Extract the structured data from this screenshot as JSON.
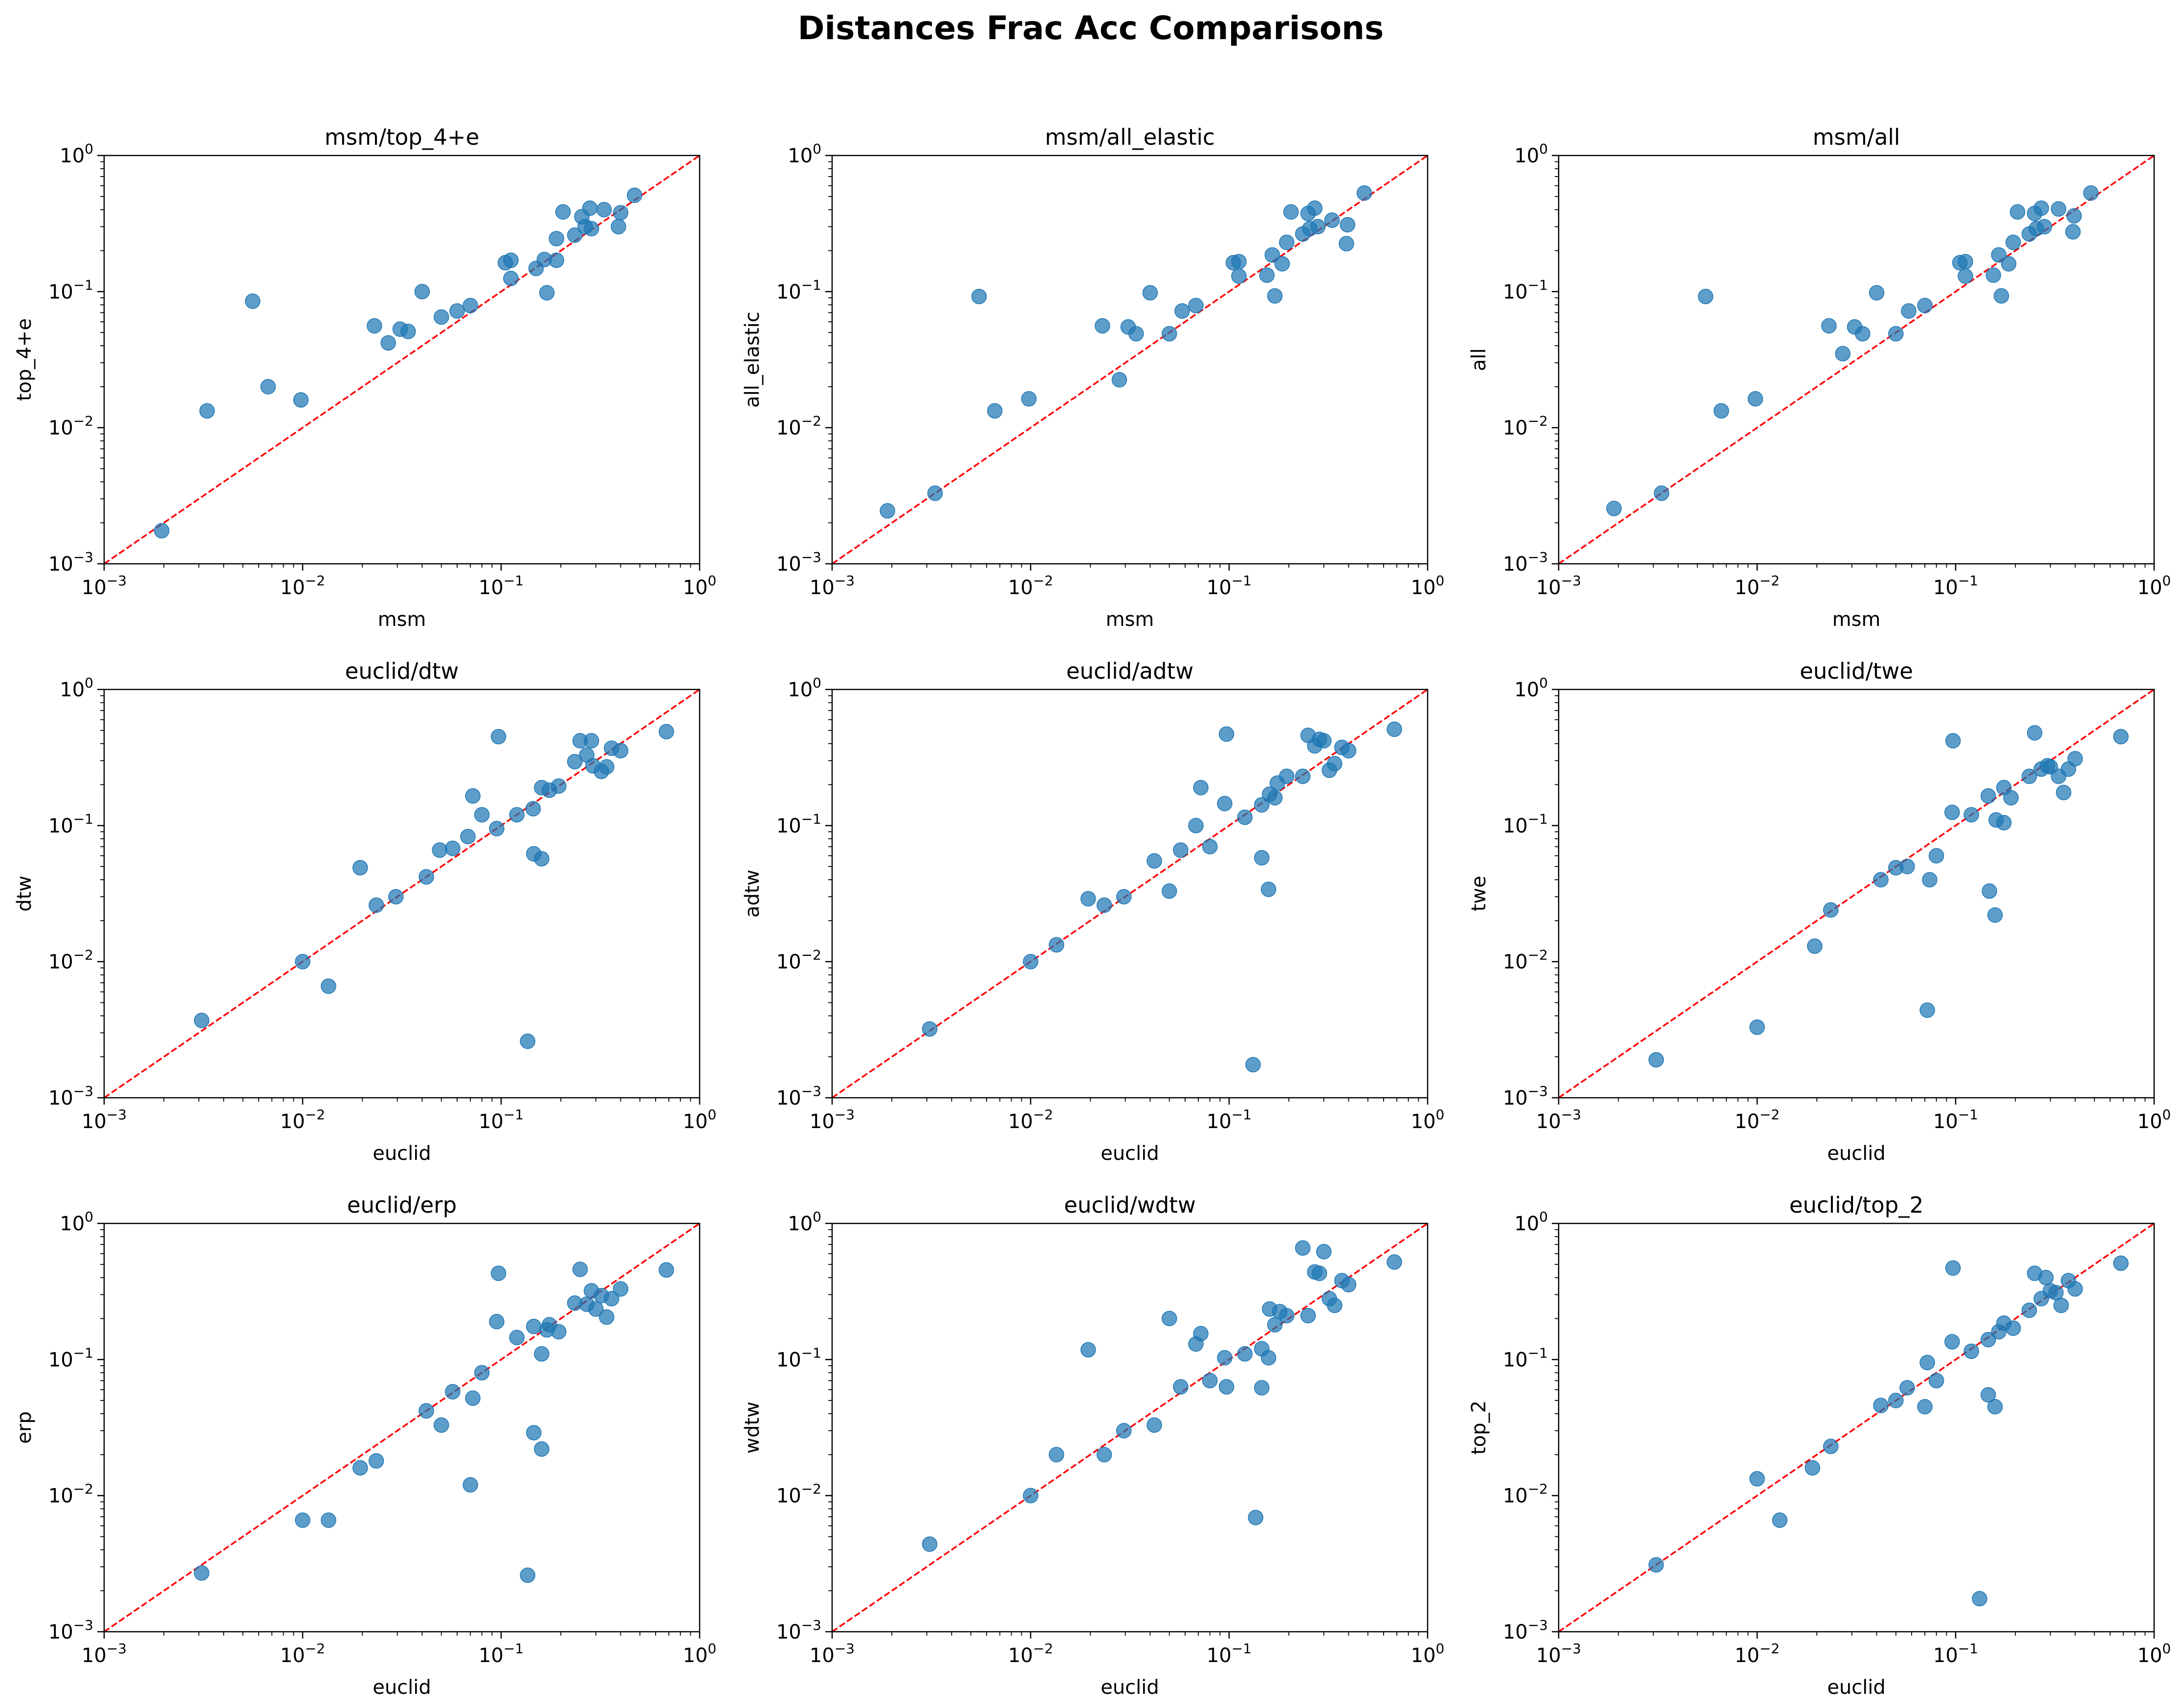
{
  "figure": {
    "suptitle": "Distances Frac Acc Comparisons"
  },
  "colors": {
    "points": "#1f77b4",
    "diagonal": "#ff0000",
    "axes": "#000000"
  },
  "chart_data": [
    {
      "type": "scatter",
      "title": "msm/top_4+e",
      "xlabel": "msm",
      "ylabel": "top_4+e",
      "xscale": "log",
      "yscale": "log",
      "xlim": [
        0.001,
        1
      ],
      "ylim": [
        0.001,
        1
      ],
      "tick_labels": [
        "10^-3",
        "10^-2",
        "10^-1",
        "10^0"
      ],
      "reference_line": "y = x (dashed)",
      "grid": false,
      "points": [
        [
          0.00195,
          0.00175
        ],
        [
          0.0033,
          0.0133
        ],
        [
          0.0056,
          0.085
        ],
        [
          0.0067,
          0.02
        ],
        [
          0.0098,
          0.016
        ],
        [
          0.023,
          0.056
        ],
        [
          0.027,
          0.042
        ],
        [
          0.031,
          0.053
        ],
        [
          0.034,
          0.051
        ],
        [
          0.04,
          0.1
        ],
        [
          0.05,
          0.065
        ],
        [
          0.06,
          0.072
        ],
        [
          0.07,
          0.079
        ],
        [
          0.105,
          0.163
        ],
        [
          0.112,
          0.17
        ],
        [
          0.112,
          0.125
        ],
        [
          0.15,
          0.148
        ],
        [
          0.165,
          0.172
        ],
        [
          0.17,
          0.098
        ],
        [
          0.19,
          0.17
        ],
        [
          0.19,
          0.245
        ],
        [
          0.205,
          0.385
        ],
        [
          0.235,
          0.26
        ],
        [
          0.255,
          0.355
        ],
        [
          0.265,
          0.3
        ],
        [
          0.28,
          0.41
        ],
        [
          0.285,
          0.29
        ],
        [
          0.33,
          0.4
        ],
        [
          0.39,
          0.3
        ],
        [
          0.4,
          0.38
        ],
        [
          0.47,
          0.51
        ]
      ]
    },
    {
      "type": "scatter",
      "title": "msm/all_elastic",
      "xlabel": "msm",
      "ylabel": "all_elastic",
      "xscale": "log",
      "yscale": "log",
      "xlim": [
        0.001,
        1
      ],
      "ylim": [
        0.001,
        1
      ],
      "tick_labels": [
        "10^-3",
        "10^-2",
        "10^-1",
        "10^0"
      ],
      "reference_line": "y = x (dashed)",
      "grid": false,
      "points": [
        [
          0.0019,
          0.00245
        ],
        [
          0.0033,
          0.0033
        ],
        [
          0.0055,
          0.092
        ],
        [
          0.0066,
          0.0133
        ],
        [
          0.0098,
          0.0163
        ],
        [
          0.023,
          0.056
        ],
        [
          0.028,
          0.0225
        ],
        [
          0.031,
          0.055
        ],
        [
          0.034,
          0.049
        ],
        [
          0.04,
          0.098
        ],
        [
          0.05,
          0.049
        ],
        [
          0.058,
          0.072
        ],
        [
          0.068,
          0.079
        ],
        [
          0.105,
          0.163
        ],
        [
          0.112,
          0.166
        ],
        [
          0.112,
          0.13
        ],
        [
          0.155,
          0.132
        ],
        [
          0.165,
          0.186
        ],
        [
          0.17,
          0.093
        ],
        [
          0.185,
          0.16
        ],
        [
          0.195,
          0.23
        ],
        [
          0.205,
          0.385
        ],
        [
          0.235,
          0.265
        ],
        [
          0.25,
          0.375
        ],
        [
          0.255,
          0.29
        ],
        [
          0.27,
          0.41
        ],
        [
          0.28,
          0.3
        ],
        [
          0.33,
          0.335
        ],
        [
          0.395,
          0.31
        ],
        [
          0.39,
          0.225
        ],
        [
          0.48,
          0.53
        ]
      ]
    },
    {
      "type": "scatter",
      "title": "msm/all",
      "xlabel": "msm",
      "ylabel": "all",
      "xscale": "log",
      "yscale": "log",
      "xlim": [
        0.001,
        1
      ],
      "ylim": [
        0.001,
        1
      ],
      "tick_labels": [
        "10^-3",
        "10^-2",
        "10^-1",
        "10^0"
      ],
      "reference_line": "y = x (dashed)",
      "grid": false,
      "points": [
        [
          0.0019,
          0.00255
        ],
        [
          0.0033,
          0.0033
        ],
        [
          0.0055,
          0.092
        ],
        [
          0.0066,
          0.0133
        ],
        [
          0.0098,
          0.0163
        ],
        [
          0.023,
          0.056
        ],
        [
          0.027,
          0.035
        ],
        [
          0.031,
          0.055
        ],
        [
          0.034,
          0.049
        ],
        [
          0.04,
          0.098
        ],
        [
          0.05,
          0.049
        ],
        [
          0.058,
          0.072
        ],
        [
          0.07,
          0.079
        ],
        [
          0.105,
          0.163
        ],
        [
          0.112,
          0.166
        ],
        [
          0.112,
          0.13
        ],
        [
          0.155,
          0.132
        ],
        [
          0.165,
          0.186
        ],
        [
          0.17,
          0.093
        ],
        [
          0.185,
          0.16
        ],
        [
          0.195,
          0.23
        ],
        [
          0.205,
          0.385
        ],
        [
          0.235,
          0.265
        ],
        [
          0.25,
          0.375
        ],
        [
          0.255,
          0.29
        ],
        [
          0.27,
          0.41
        ],
        [
          0.28,
          0.3
        ],
        [
          0.33,
          0.405
        ],
        [
          0.395,
          0.36
        ],
        [
          0.39,
          0.275
        ],
        [
          0.48,
          0.53
        ]
      ]
    },
    {
      "type": "scatter",
      "title": "euclid/dtw",
      "xlabel": "euclid",
      "ylabel": "dtw",
      "xscale": "log",
      "yscale": "log",
      "xlim": [
        0.001,
        1
      ],
      "ylim": [
        0.001,
        1
      ],
      "tick_labels": [
        "10^-3",
        "10^-2",
        "10^-1",
        "10^0"
      ],
      "reference_line": "y = x (dashed)",
      "grid": false,
      "points": [
        [
          0.0031,
          0.0037
        ],
        [
          0.01,
          0.01
        ],
        [
          0.0135,
          0.0066
        ],
        [
          0.0195,
          0.049
        ],
        [
          0.0235,
          0.026
        ],
        [
          0.0295,
          0.03
        ],
        [
          0.042,
          0.042
        ],
        [
          0.049,
          0.066
        ],
        [
          0.057,
          0.068
        ],
        [
          0.068,
          0.083
        ],
        [
          0.072,
          0.165
        ],
        [
          0.08,
          0.12
        ],
        [
          0.095,
          0.095
        ],
        [
          0.097,
          0.45
        ],
        [
          0.12,
          0.12
        ],
        [
          0.136,
          0.0026
        ],
        [
          0.145,
          0.133
        ],
        [
          0.146,
          0.062
        ],
        [
          0.16,
          0.057
        ],
        [
          0.16,
          0.19
        ],
        [
          0.175,
          0.182
        ],
        [
          0.195,
          0.195
        ],
        [
          0.235,
          0.295
        ],
        [
          0.25,
          0.42
        ],
        [
          0.27,
          0.33
        ],
        [
          0.285,
          0.42
        ],
        [
          0.29,
          0.275
        ],
        [
          0.32,
          0.25
        ],
        [
          0.34,
          0.27
        ],
        [
          0.36,
          0.37
        ],
        [
          0.4,
          0.355
        ],
        [
          0.68,
          0.49
        ]
      ]
    },
    {
      "type": "scatter",
      "title": "euclid/adtw",
      "xlabel": "euclid",
      "ylabel": "adtw",
      "xscale": "log",
      "yscale": "log",
      "xlim": [
        0.001,
        1
      ],
      "ylim": [
        0.001,
        1
      ],
      "tick_labels": [
        "10^-3",
        "10^-2",
        "10^-1",
        "10^0"
      ],
      "reference_line": "y = x (dashed)",
      "grid": false,
      "points": [
        [
          0.0031,
          0.0032
        ],
        [
          0.01,
          0.01
        ],
        [
          0.0135,
          0.0133
        ],
        [
          0.0195,
          0.029
        ],
        [
          0.0235,
          0.026
        ],
        [
          0.0295,
          0.03
        ],
        [
          0.042,
          0.055
        ],
        [
          0.05,
          0.033
        ],
        [
          0.057,
          0.066
        ],
        [
          0.068,
          0.1
        ],
        [
          0.072,
          0.19
        ],
        [
          0.08,
          0.07
        ],
        [
          0.095,
          0.145
        ],
        [
          0.097,
          0.47
        ],
        [
          0.12,
          0.115
        ],
        [
          0.132,
          0.00175
        ],
        [
          0.146,
          0.142
        ],
        [
          0.146,
          0.058
        ],
        [
          0.158,
          0.034
        ],
        [
          0.16,
          0.17
        ],
        [
          0.17,
          0.16
        ],
        [
          0.175,
          0.205
        ],
        [
          0.195,
          0.23
        ],
        [
          0.235,
          0.23
        ],
        [
          0.25,
          0.46
        ],
        [
          0.27,
          0.385
        ],
        [
          0.285,
          0.43
        ],
        [
          0.3,
          0.42
        ],
        [
          0.32,
          0.255
        ],
        [
          0.34,
          0.285
        ],
        [
          0.37,
          0.375
        ],
        [
          0.4,
          0.355
        ],
        [
          0.68,
          0.51
        ]
      ]
    },
    {
      "type": "scatter",
      "title": "euclid/twe",
      "xlabel": "euclid",
      "ylabel": "twe",
      "xscale": "log",
      "yscale": "log",
      "xlim": [
        0.001,
        1
      ],
      "ylim": [
        0.001,
        1
      ],
      "tick_labels": [
        "10^-3",
        "10^-2",
        "10^-1",
        "10^0"
      ],
      "reference_line": "y = x (dashed)",
      "grid": false,
      "points": [
        [
          0.0031,
          0.0019
        ],
        [
          0.01,
          0.0033
        ],
        [
          0.0195,
          0.013
        ],
        [
          0.0235,
          0.024
        ],
        [
          0.042,
          0.04
        ],
        [
          0.05,
          0.049
        ],
        [
          0.057,
          0.05
        ],
        [
          0.072,
          0.0044
        ],
        [
          0.074,
          0.04
        ],
        [
          0.08,
          0.06
        ],
        [
          0.096,
          0.125
        ],
        [
          0.097,
          0.42
        ],
        [
          0.12,
          0.12
        ],
        [
          0.146,
          0.165
        ],
        [
          0.148,
          0.033
        ],
        [
          0.158,
          0.022
        ],
        [
          0.16,
          0.11
        ],
        [
          0.175,
          0.19
        ],
        [
          0.175,
          0.105
        ],
        [
          0.19,
          0.16
        ],
        [
          0.235,
          0.23
        ],
        [
          0.25,
          0.48
        ],
        [
          0.27,
          0.26
        ],
        [
          0.29,
          0.275
        ],
        [
          0.3,
          0.27
        ],
        [
          0.33,
          0.23
        ],
        [
          0.35,
          0.175
        ],
        [
          0.37,
          0.26
        ],
        [
          0.4,
          0.31
        ],
        [
          0.68,
          0.45
        ]
      ]
    },
    {
      "type": "scatter",
      "title": "euclid/erp",
      "xlabel": "euclid",
      "ylabel": "erp",
      "xscale": "log",
      "yscale": "log",
      "xlim": [
        0.001,
        1
      ],
      "ylim": [
        0.001,
        1
      ],
      "tick_labels": [
        "10^-3",
        "10^-2",
        "10^-1",
        "10^0"
      ],
      "reference_line": "y = x (dashed)",
      "grid": false,
      "points": [
        [
          0.0031,
          0.0027
        ],
        [
          0.01,
          0.0066
        ],
        [
          0.0135,
          0.0066
        ],
        [
          0.0195,
          0.016
        ],
        [
          0.0235,
          0.018
        ],
        [
          0.042,
          0.042
        ],
        [
          0.05,
          0.033
        ],
        [
          0.057,
          0.058
        ],
        [
          0.07,
          0.012
        ],
        [
          0.072,
          0.052
        ],
        [
          0.08,
          0.08
        ],
        [
          0.095,
          0.19
        ],
        [
          0.097,
          0.43
        ],
        [
          0.12,
          0.145
        ],
        [
          0.136,
          0.0026
        ],
        [
          0.146,
          0.175
        ],
        [
          0.146,
          0.029
        ],
        [
          0.16,
          0.022
        ],
        [
          0.16,
          0.11
        ],
        [
          0.17,
          0.165
        ],
        [
          0.175,
          0.18
        ],
        [
          0.195,
          0.16
        ],
        [
          0.235,
          0.26
        ],
        [
          0.25,
          0.46
        ],
        [
          0.27,
          0.255
        ],
        [
          0.285,
          0.32
        ],
        [
          0.3,
          0.235
        ],
        [
          0.32,
          0.295
        ],
        [
          0.34,
          0.205
        ],
        [
          0.36,
          0.28
        ],
        [
          0.4,
          0.33
        ],
        [
          0.68,
          0.455
        ]
      ]
    },
    {
      "type": "scatter",
      "title": "euclid/wdtw",
      "xlabel": "euclid",
      "ylabel": "wdtw",
      "xscale": "log",
      "yscale": "log",
      "xlim": [
        0.001,
        1
      ],
      "ylim": [
        0.001,
        1
      ],
      "tick_labels": [
        "10^-3",
        "10^-2",
        "10^-1",
        "10^0"
      ],
      "reference_line": "y = x (dashed)",
      "grid": false,
      "points": [
        [
          0.0031,
          0.0044
        ],
        [
          0.01,
          0.01
        ],
        [
          0.0135,
          0.02
        ],
        [
          0.0195,
          0.118
        ],
        [
          0.0235,
          0.02
        ],
        [
          0.0295,
          0.03
        ],
        [
          0.042,
          0.033
        ],
        [
          0.05,
          0.2
        ],
        [
          0.057,
          0.063
        ],
        [
          0.068,
          0.13
        ],
        [
          0.072,
          0.155
        ],
        [
          0.08,
          0.07
        ],
        [
          0.095,
          0.103
        ],
        [
          0.097,
          0.063
        ],
        [
          0.12,
          0.11
        ],
        [
          0.136,
          0.0069
        ],
        [
          0.146,
          0.12
        ],
        [
          0.146,
          0.062
        ],
        [
          0.158,
          0.103
        ],
        [
          0.16,
          0.235
        ],
        [
          0.17,
          0.18
        ],
        [
          0.18,
          0.225
        ],
        [
          0.195,
          0.21
        ],
        [
          0.235,
          0.66
        ],
        [
          0.25,
          0.21
        ],
        [
          0.27,
          0.44
        ],
        [
          0.285,
          0.43
        ],
        [
          0.3,
          0.62
        ],
        [
          0.32,
          0.28
        ],
        [
          0.34,
          0.25
        ],
        [
          0.37,
          0.38
        ],
        [
          0.4,
          0.355
        ],
        [
          0.68,
          0.52
        ]
      ]
    },
    {
      "type": "scatter",
      "title": "euclid/top_2",
      "xlabel": "euclid",
      "ylabel": "top_2",
      "xscale": "log",
      "yscale": "log",
      "xlim": [
        0.001,
        1
      ],
      "ylim": [
        0.001,
        1
      ],
      "tick_labels": [
        "10^-3",
        "10^-2",
        "10^-1",
        "10^0"
      ],
      "reference_line": "y = x (dashed)",
      "grid": false,
      "points": [
        [
          0.0031,
          0.0031
        ],
        [
          0.01,
          0.0133
        ],
        [
          0.013,
          0.0066
        ],
        [
          0.019,
          0.016
        ],
        [
          0.0235,
          0.023
        ],
        [
          0.042,
          0.046
        ],
        [
          0.05,
          0.05
        ],
        [
          0.057,
          0.062
        ],
        [
          0.07,
          0.045
        ],
        [
          0.072,
          0.095
        ],
        [
          0.08,
          0.07
        ],
        [
          0.096,
          0.135
        ],
        [
          0.097,
          0.47
        ],
        [
          0.12,
          0.115
        ],
        [
          0.132,
          0.00175
        ],
        [
          0.146,
          0.14
        ],
        [
          0.146,
          0.055
        ],
        [
          0.158,
          0.045
        ],
        [
          0.165,
          0.16
        ],
        [
          0.175,
          0.185
        ],
        [
          0.195,
          0.17
        ],
        [
          0.235,
          0.23
        ],
        [
          0.25,
          0.43
        ],
        [
          0.27,
          0.28
        ],
        [
          0.285,
          0.4
        ],
        [
          0.3,
          0.32
        ],
        [
          0.32,
          0.31
        ],
        [
          0.34,
          0.25
        ],
        [
          0.37,
          0.38
        ],
        [
          0.4,
          0.33
        ],
        [
          0.68,
          0.51
        ]
      ]
    }
  ]
}
